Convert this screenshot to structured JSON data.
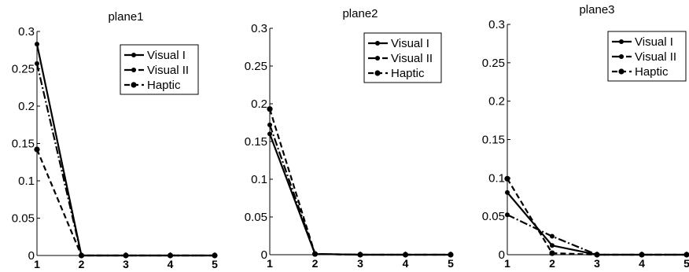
{
  "chart_data": [
    {
      "type": "line",
      "title": "plane1",
      "x": [
        1,
        2,
        3,
        4,
        5
      ],
      "xticks": [
        "1",
        "2",
        "3",
        "4",
        "5"
      ],
      "yticks": [
        "0",
        "0.05",
        "0.1",
        "0.15",
        "0.2",
        "0.25",
        "0.3"
      ],
      "ylim": [
        0,
        0.3
      ],
      "xlim": [
        1,
        5
      ],
      "legend": "top-right",
      "series": [
        {
          "name": "Visual I",
          "values": [
            0.283,
            0,
            0,
            0,
            0
          ],
          "style": "solid"
        },
        {
          "name": "Visual II",
          "values": [
            0.257,
            0,
            0,
            0,
            0
          ],
          "style": "dashdot"
        },
        {
          "name": "Haptic",
          "values": [
            0.142,
            0,
            0,
            0,
            0
          ],
          "style": "dashed"
        }
      ]
    },
    {
      "type": "line",
      "title": "plane2",
      "x": [
        1,
        2,
        3,
        4,
        5
      ],
      "xticks": [
        "1",
        "2",
        "3",
        "4",
        "5"
      ],
      "yticks": [
        "0",
        "0.05",
        "0.1",
        "0.15",
        "0.2",
        "0.25",
        "0.3"
      ],
      "ylim": [
        0,
        0.3
      ],
      "xlim": [
        1,
        5
      ],
      "legend": "top-right",
      "series": [
        {
          "name": "Visual I",
          "values": [
            0.16,
            0.001,
            0,
            0,
            0
          ],
          "style": "solid"
        },
        {
          "name": "Visual II",
          "values": [
            0.172,
            0.001,
            0,
            0,
            0
          ],
          "style": "dashdot"
        },
        {
          "name": "Haptic",
          "values": [
            0.193,
            0.001,
            0,
            0,
            0
          ],
          "style": "dashed"
        }
      ]
    },
    {
      "type": "line",
      "title": "plane3",
      "x": [
        1,
        2,
        3,
        4,
        5
      ],
      "xticks": [
        "1",
        "2",
        "3",
        "4",
        "5"
      ],
      "yticks": [
        "0",
        "0.05",
        "0.1",
        "0.15",
        "0.2",
        "0.25",
        "0.3"
      ],
      "ylim": [
        0,
        0.3
      ],
      "xlim": [
        1,
        5
      ],
      "legend": "top-right",
      "series": [
        {
          "name": "Visual I",
          "values": [
            0.081,
            0.012,
            0,
            0,
            0
          ],
          "style": "solid"
        },
        {
          "name": "Visual II",
          "values": [
            0.052,
            0.024,
            0,
            0,
            0
          ],
          "style": "dashdot"
        },
        {
          "name": "Haptic",
          "values": [
            0.099,
            0.002,
            0,
            0,
            0
          ],
          "style": "dashed"
        }
      ]
    }
  ]
}
